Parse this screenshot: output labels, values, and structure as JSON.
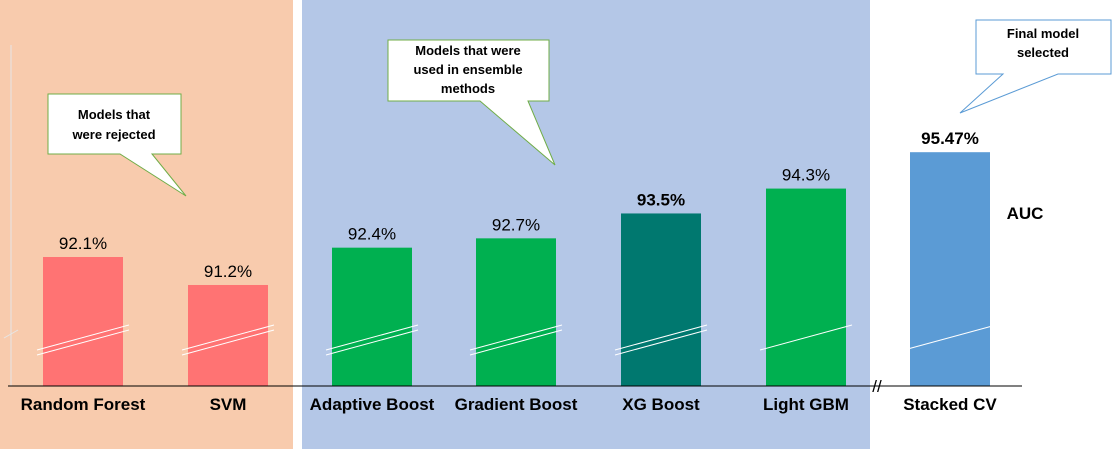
{
  "chart_data": {
    "type": "bar",
    "categories": [
      "Random Forest",
      "SVM",
      "Adaptive Boost",
      "Gradient Boost",
      "XG Boost",
      "Light GBM",
      "Stacked CV"
    ],
    "values": [
      92.1,
      91.2,
      92.4,
      92.7,
      93.5,
      94.3,
      95.47
    ],
    "value_labels": [
      "92.1%",
      "91.2%",
      "92.4%",
      "92.7%",
      "93.5%",
      "94.3%",
      "95.47%"
    ],
    "bold_value_labels": [
      false,
      false,
      false,
      false,
      true,
      false,
      true
    ],
    "bar_colors": [
      "#ff7373",
      "#ff7373",
      "#00b050",
      "#00b050",
      "#00786f",
      "#00b050",
      "#5b9bd5"
    ],
    "metric_label": "AUC",
    "axis_break": "//",
    "groups": [
      {
        "name": "rejected",
        "background": "#f8cbad",
        "categories": [
          "Random Forest",
          "SVM"
        ]
      },
      {
        "name": "ensemble",
        "background": "#b4c7e7",
        "categories": [
          "Adaptive Boost",
          "Gradient Boost",
          "XG Boost",
          "Light GBM"
        ]
      }
    ],
    "callouts": [
      {
        "lines": [
          "Models that",
          "were rejected"
        ],
        "border": "#70ad47"
      },
      {
        "lines": [
          "Models that were",
          "used in ensemble",
          "methods"
        ],
        "border": "#70ad47"
      },
      {
        "lines": [
          "Final model",
          "selected"
        ],
        "border": "#5b9bd5"
      }
    ]
  }
}
